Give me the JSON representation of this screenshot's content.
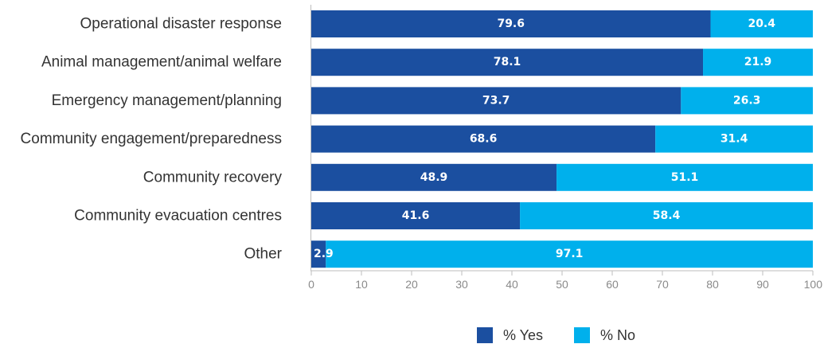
{
  "chart_data": {
    "type": "bar",
    "orientation": "horizontal",
    "stacked": true,
    "title": "",
    "xlabel": "",
    "ylabel": "",
    "categories": [
      "Operational disaster response",
      "Animal management/animal welfare",
      "Emergency management/planning",
      "Community engagement/preparedness",
      "Community recovery",
      "Community evacuation centres",
      "Other"
    ],
    "series": [
      {
        "name": "% Yes",
        "color": "#1b4fa0",
        "values": [
          79.6,
          78.1,
          73.7,
          68.6,
          48.9,
          41.6,
          2.9
        ]
      },
      {
        "name": "% No",
        "color": "#00b0ec",
        "values": [
          20.4,
          21.9,
          26.3,
          31.4,
          51.1,
          58.4,
          97.1
        ]
      }
    ],
    "data_labels": [
      [
        "79.6",
        "78.1",
        "73.7",
        "68.6",
        "48.9",
        "41.6",
        "2.9"
      ],
      [
        "20.4",
        "21.9",
        "26.3",
        "31.4",
        "51.1",
        "58.4",
        "97.1"
      ]
    ],
    "xlim": [
      0,
      100
    ],
    "xticks": [
      "0",
      "10",
      "20",
      "30",
      "40",
      "50",
      "60",
      "70",
      "80",
      "90",
      "100"
    ],
    "grid": false,
    "legend_position": "bottom"
  }
}
